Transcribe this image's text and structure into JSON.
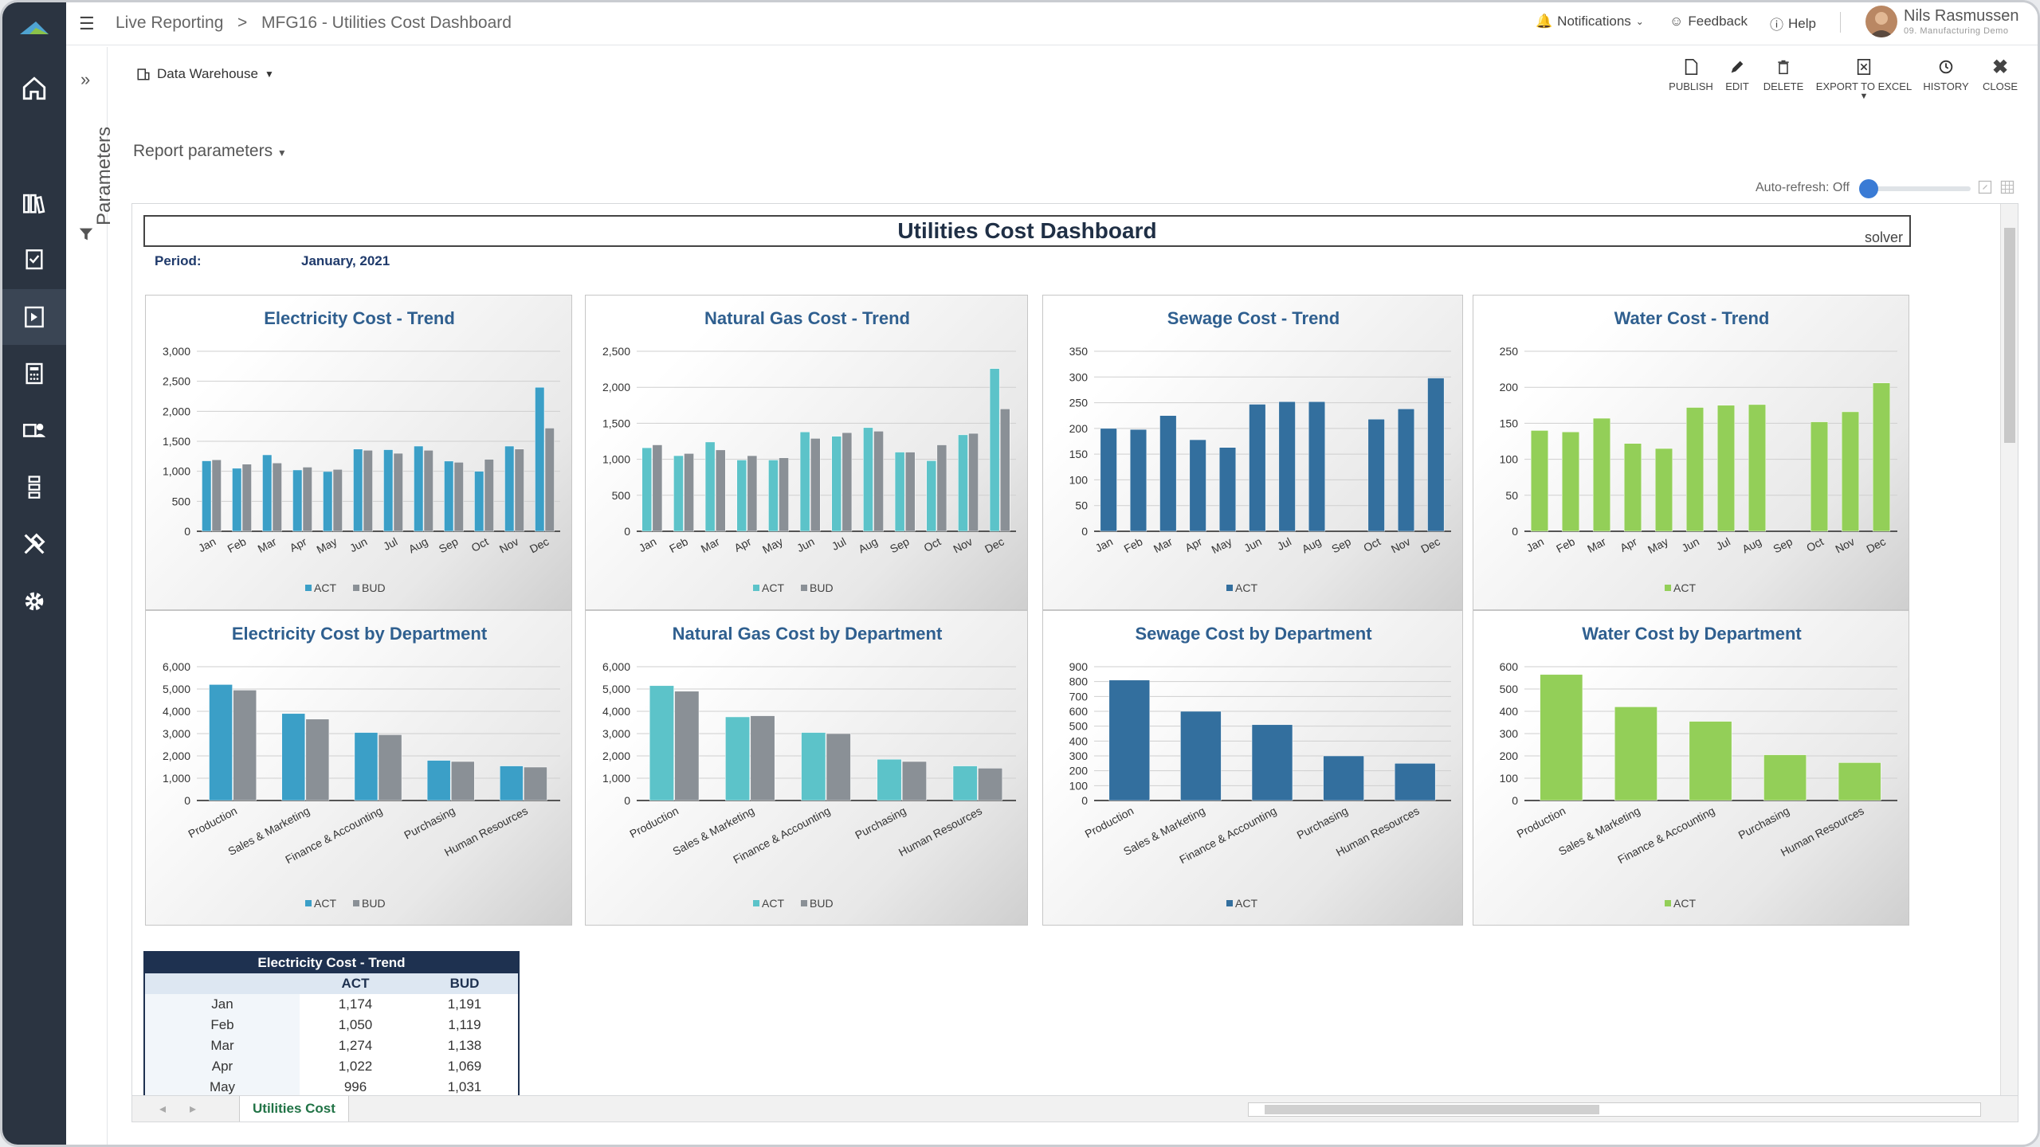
{
  "breadcrumb": {
    "root": "Live Reporting",
    "sep": ">",
    "current": "MFG16 - Utilities Cost Dashboard"
  },
  "header": {
    "notifications": "Notifications",
    "feedback": "Feedback",
    "help": "Help",
    "user_name": "Nils Rasmussen",
    "user_sub": "09. Manufacturing Demo"
  },
  "params": {
    "label": "Parameters"
  },
  "toolbar": {
    "warehouse": "Data Warehouse",
    "publish": "PUBLISH",
    "edit": "EDIT",
    "delete": "DELETE",
    "export": "EXPORT TO EXCEL",
    "history": "HISTORY",
    "close": "CLOSE"
  },
  "report_params": "Report parameters",
  "auto_refresh": "Auto-refresh: Off",
  "dashboard": {
    "title": "Utilities Cost Dashboard",
    "logo": "solver",
    "period_label": "Period:",
    "period_value": "January, 2021"
  },
  "sheet_tab": "Utilities Cost",
  "colors": {
    "electricity": "#3b9fc7",
    "gas": "#5cc3c9",
    "sewage": "#336f9e",
    "water": "#93cf58",
    "bud": "#8a9096"
  },
  "table": {
    "title": "Electricity Cost - Trend",
    "headers": [
      "",
      "ACT",
      "BUD"
    ],
    "rows": [
      [
        "Jan",
        "1,174",
        "1,191"
      ],
      [
        "Feb",
        "1,050",
        "1,119"
      ],
      [
        "Mar",
        "1,274",
        "1,138"
      ],
      [
        "Apr",
        "1,022",
        "1,069"
      ],
      [
        "May",
        "996",
        "1,031"
      ]
    ]
  },
  "chart_data": [
    {
      "type": "bar",
      "title": "Electricity Cost - Trend",
      "categories": [
        "Jan",
        "Feb",
        "Mar",
        "Apr",
        "May",
        "Jun",
        "Jul",
        "Aug",
        "Sep",
        "Oct",
        "Nov",
        "Dec"
      ],
      "ylim": [
        0,
        3000
      ],
      "yticks": [
        "0",
        "500",
        "1,000",
        "1,500",
        "2,000",
        "2,500",
        "3,000"
      ],
      "series": [
        {
          "name": "ACT",
          "values": [
            1174,
            1050,
            1274,
            1022,
            996,
            1370,
            1360,
            1420,
            1170,
            1000,
            1420,
            2400
          ]
        },
        {
          "name": "BUD",
          "values": [
            1191,
            1119,
            1138,
            1069,
            1031,
            1350,
            1300,
            1350,
            1150,
            1200,
            1370,
            1720
          ]
        }
      ]
    },
    {
      "type": "bar",
      "title": "Natural Gas Cost - Trend",
      "categories": [
        "Jan",
        "Feb",
        "Mar",
        "Apr",
        "May",
        "Jun",
        "Jul",
        "Aug",
        "Sep",
        "Oct",
        "Nov",
        "Dec"
      ],
      "ylim": [
        0,
        2500
      ],
      "yticks": [
        "0",
        "500",
        "1,000",
        "1,500",
        "2,000",
        "2,500"
      ],
      "series": [
        {
          "name": "ACT",
          "values": [
            1160,
            1050,
            1240,
            990,
            990,
            1380,
            1320,
            1440,
            1100,
            980,
            1340,
            2260
          ]
        },
        {
          "name": "BUD",
          "values": [
            1200,
            1080,
            1130,
            1050,
            1020,
            1290,
            1370,
            1390,
            1100,
            1200,
            1360,
            1700
          ]
        }
      ]
    },
    {
      "type": "bar",
      "title": "Sewage Cost - Trend",
      "categories": [
        "Jan",
        "Feb",
        "Mar",
        "Apr",
        "May",
        "Jun",
        "Jul",
        "Aug",
        "Sep",
        "Oct",
        "Nov",
        "Dec"
      ],
      "ylim": [
        0,
        350
      ],
      "yticks": [
        "0",
        "50",
        "100",
        "150",
        "200",
        "250",
        "300",
        "350"
      ],
      "series": [
        {
          "name": "ACT",
          "values": [
            200,
            198,
            225,
            178,
            163,
            247,
            252,
            252,
            0,
            218,
            238,
            298
          ]
        }
      ]
    },
    {
      "type": "bar",
      "title": "Water Cost - Trend",
      "categories": [
        "Jan",
        "Feb",
        "Mar",
        "Apr",
        "May",
        "Jun",
        "Jul",
        "Aug",
        "Sep",
        "Oct",
        "Nov",
        "Dec"
      ],
      "ylim": [
        0,
        250
      ],
      "yticks": [
        "0",
        "50",
        "100",
        "150",
        "200",
        "250"
      ],
      "series": [
        {
          "name": "ACT",
          "values": [
            140,
            138,
            157,
            122,
            115,
            172,
            175,
            176,
            0,
            152,
            166,
            206
          ]
        }
      ]
    },
    {
      "type": "bar",
      "title": "Electricity Cost by Department",
      "categories": [
        "Production",
        "Sales & Marketing",
        "Finance & Accounting",
        "Purchasing",
        "Human Resources"
      ],
      "ylim": [
        0,
        6000
      ],
      "yticks": [
        "0",
        "1,000",
        "2,000",
        "3,000",
        "4,000",
        "5,000",
        "6,000"
      ],
      "series": [
        {
          "name": "ACT",
          "values": [
            5200,
            3900,
            3050,
            1800,
            1550
          ]
        },
        {
          "name": "BUD",
          "values": [
            4950,
            3650,
            2950,
            1750,
            1500
          ]
        }
      ]
    },
    {
      "type": "bar",
      "title": "Natural Gas Cost by Department",
      "categories": [
        "Production",
        "Sales & Marketing",
        "Finance & Accounting",
        "Purchasing",
        "Human Resources"
      ],
      "ylim": [
        0,
        6000
      ],
      "yticks": [
        "0",
        "1,000",
        "2,000",
        "3,000",
        "4,000",
        "5,000",
        "6,000"
      ],
      "series": [
        {
          "name": "ACT",
          "values": [
            5150,
            3750,
            3050,
            1850,
            1550
          ]
        },
        {
          "name": "BUD",
          "values": [
            4900,
            3800,
            3000,
            1750,
            1450
          ]
        }
      ]
    },
    {
      "type": "bar",
      "title": "Sewage Cost by Department",
      "categories": [
        "Production",
        "Sales & Marketing",
        "Finance & Accounting",
        "Purchasing",
        "Human Resources"
      ],
      "ylim": [
        0,
        900
      ],
      "yticks": [
        "0",
        "100",
        "200",
        "300",
        "400",
        "500",
        "600",
        "700",
        "800",
        "900"
      ],
      "series": [
        {
          "name": "ACT",
          "values": [
            810,
            600,
            510,
            300,
            250
          ]
        }
      ]
    },
    {
      "type": "bar",
      "title": "Water Cost by Department",
      "categories": [
        "Production",
        "Sales & Marketing",
        "Finance & Accounting",
        "Purchasing",
        "Human Resources"
      ],
      "ylim": [
        0,
        600
      ],
      "yticks": [
        "0",
        "100",
        "200",
        "300",
        "400",
        "500",
        "600"
      ],
      "series": [
        {
          "name": "ACT",
          "values": [
            565,
            420,
            355,
            205,
            170
          ]
        }
      ]
    }
  ]
}
